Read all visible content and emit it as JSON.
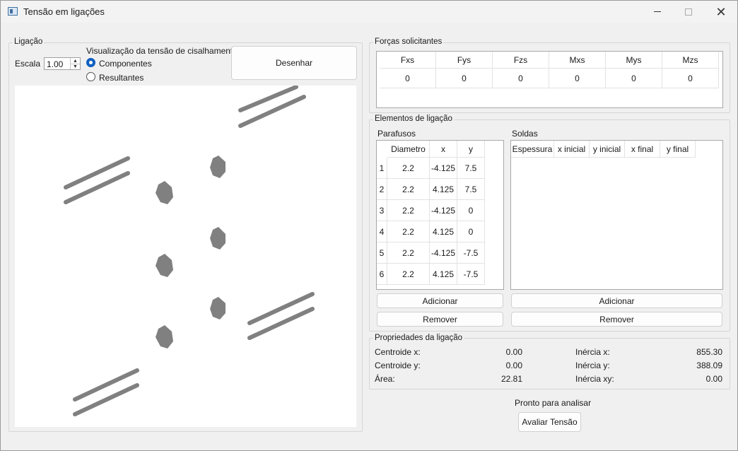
{
  "window": {
    "title": "Tensão em ligações"
  },
  "ligacao": {
    "group_title": "Ligação",
    "escala_label": "Escala",
    "escala_value": "1.00",
    "visualizacao_label": "Visualização da tensão de cisalhamento:",
    "radio_componentes": "Componentes",
    "radio_resultantes": "Resultantes",
    "selected": "Componentes",
    "desenhar_button": "Desenhar"
  },
  "forcas": {
    "group_title": "Forças solicitantes",
    "headers": [
      "Fxs",
      "Fys",
      "Fzs",
      "Mxs",
      "Mys",
      "Mzs"
    ],
    "values": [
      "0",
      "0",
      "0",
      "0",
      "0",
      "0"
    ]
  },
  "elementos": {
    "group_title": "Elementos de ligação",
    "parafusos": {
      "label": "Parafusos",
      "headers": [
        "Diametro",
        "x",
        "y"
      ],
      "rows": [
        {
          "num": "1",
          "d": "2.2",
          "x": "-4.125",
          "y": "7.5"
        },
        {
          "num": "2",
          "d": "2.2",
          "x": "4.125",
          "y": "7.5"
        },
        {
          "num": "3",
          "d": "2.2",
          "x": "-4.125",
          "y": "0"
        },
        {
          "num": "4",
          "d": "2.2",
          "x": "4.125",
          "y": "0"
        },
        {
          "num": "5",
          "d": "2.2",
          "x": "-4.125",
          "y": "-7.5"
        },
        {
          "num": "6",
          "d": "2.2",
          "x": "4.125",
          "y": "-7.5"
        }
      ],
      "add_button": "Adicionar",
      "remove_button": "Remover"
    },
    "soldas": {
      "label": "Soldas",
      "headers": [
        "Espessura",
        "x inicial",
        "y inicial",
        "x final",
        "y final"
      ],
      "add_button": "Adicionar",
      "remove_button": "Remover"
    }
  },
  "propriedades": {
    "group_title": "Propriedades da ligação",
    "centroide_x_label": "Centroide x:",
    "centroide_x": "0.00",
    "centroide_y_label": "Centroide y:",
    "centroide_y": "0.00",
    "area_label": "Área:",
    "area": "22.81",
    "inercia_x_label": "Inércia x:",
    "inercia_x": "855.30",
    "inercia_y_label": "Inércia y:",
    "inercia_y": "388.09",
    "inercia_xy_label": "Inércia xy:",
    "inercia_xy": "0.00"
  },
  "status": {
    "text": "Pronto para analisar",
    "avaliar_button": "Avaliar Tensão"
  },
  "colors": {
    "shape_fill": "#808080",
    "accent": "#1060c0"
  }
}
